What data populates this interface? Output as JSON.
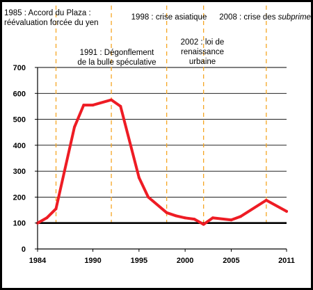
{
  "chart_data": {
    "type": "line",
    "title": "",
    "xlabel": "",
    "ylabel": "",
    "xlim": [
      1984,
      2011
    ],
    "ylim": [
      0,
      700
    ],
    "x_ticks": [
      1984,
      1990,
      1995,
      2000,
      2005,
      2011
    ],
    "y_ticks": [
      0,
      100,
      200,
      300,
      400,
      500,
      600,
      700
    ],
    "grid": "horizontal",
    "series": [
      {
        "name": "",
        "color": "#ee1c24",
        "points": [
          [
            1984,
            100
          ],
          [
            1985,
            120
          ],
          [
            1986,
            155
          ],
          [
            1988,
            470
          ],
          [
            1989,
            555
          ],
          [
            1990,
            555
          ],
          [
            1992,
            575
          ],
          [
            1993,
            550
          ],
          [
            1995,
            275
          ],
          [
            1996,
            200
          ],
          [
            1998,
            140
          ],
          [
            1999,
            128
          ],
          [
            2000,
            120
          ],
          [
            2001,
            115
          ],
          [
            2002,
            95
          ],
          [
            2003,
            120
          ],
          [
            2005,
            112
          ],
          [
            2006,
            125
          ],
          [
            2008.8,
            188
          ],
          [
            2011,
            145
          ]
        ]
      }
    ],
    "baseline": {
      "value": 100,
      "color": "#000000"
    },
    "annotations": [
      {
        "id": "plaza",
        "year": 1986,
        "lines": [
          "1985 : Accord du Plaza :",
          "réévaluation forcée du yen"
        ]
      },
      {
        "id": "bubble",
        "year": 1992,
        "lines": [
          "1991 : Dégonflement",
          "de la bulle spéculative"
        ]
      },
      {
        "id": "asia",
        "year": 1998,
        "lines": [
          "1998 : crise asiatique"
        ]
      },
      {
        "id": "urban",
        "year": 2002,
        "lines": [
          "2002 : loi de",
          "renaissance",
          "urbaine"
        ]
      },
      {
        "id": "subprime",
        "year": 2008.8,
        "lines": [
          "2008 : crise des ",
          "subprimes"
        ]
      }
    ],
    "marker_color": "#f5a623"
  }
}
